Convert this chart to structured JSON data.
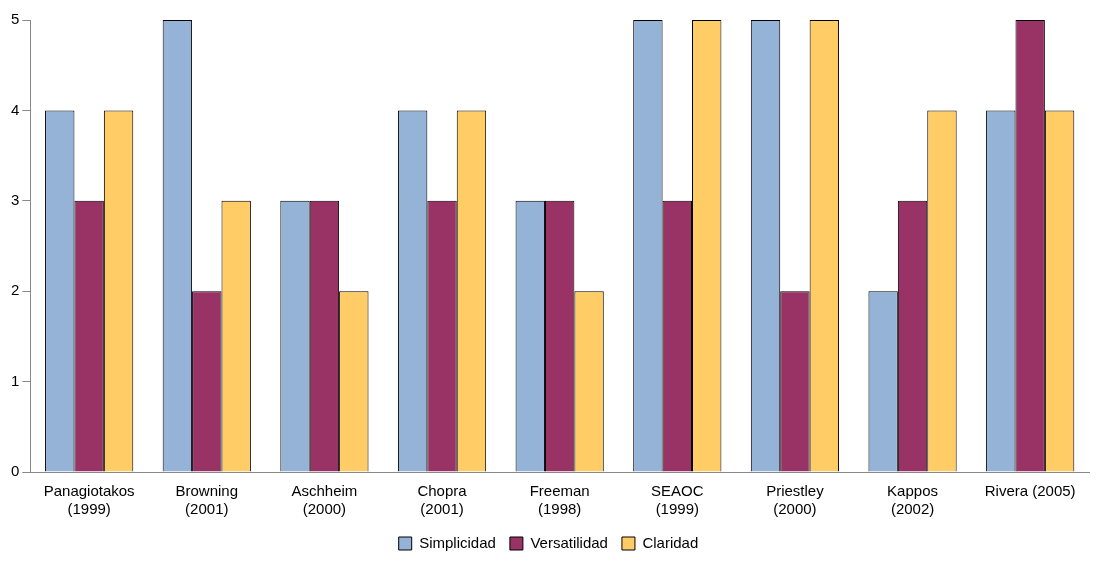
{
  "chart_data": {
    "type": "bar",
    "categories": [
      "Panagiotakos\n(1999)",
      "Browning\n(2001)",
      "Aschheim\n(2000)",
      "Chopra\n(2001)",
      "Freeman\n(1998)",
      "SEAOC\n(1999)",
      "Priestley\n(2000)",
      "Kappos\n(2002)",
      "Rivera (2005)"
    ],
    "series": [
      {
        "name": "Simplicidad",
        "color": "#95b3d7",
        "values": [
          4,
          5,
          3,
          4,
          3,
          5,
          5,
          2,
          4
        ]
      },
      {
        "name": "Versatilidad",
        "color": "#993366",
        "values": [
          3,
          2,
          3,
          3,
          3,
          3,
          2,
          3,
          5
        ]
      },
      {
        "name": "Claridad",
        "color": "#ffcc66",
        "values": [
          4,
          3,
          2,
          4,
          2,
          5,
          5,
          4,
          4
        ]
      }
    ],
    "ylim": [
      0,
      5
    ],
    "yticks": [
      0,
      1,
      2,
      3,
      4,
      5
    ],
    "grid": false,
    "legend": "bottom"
  }
}
